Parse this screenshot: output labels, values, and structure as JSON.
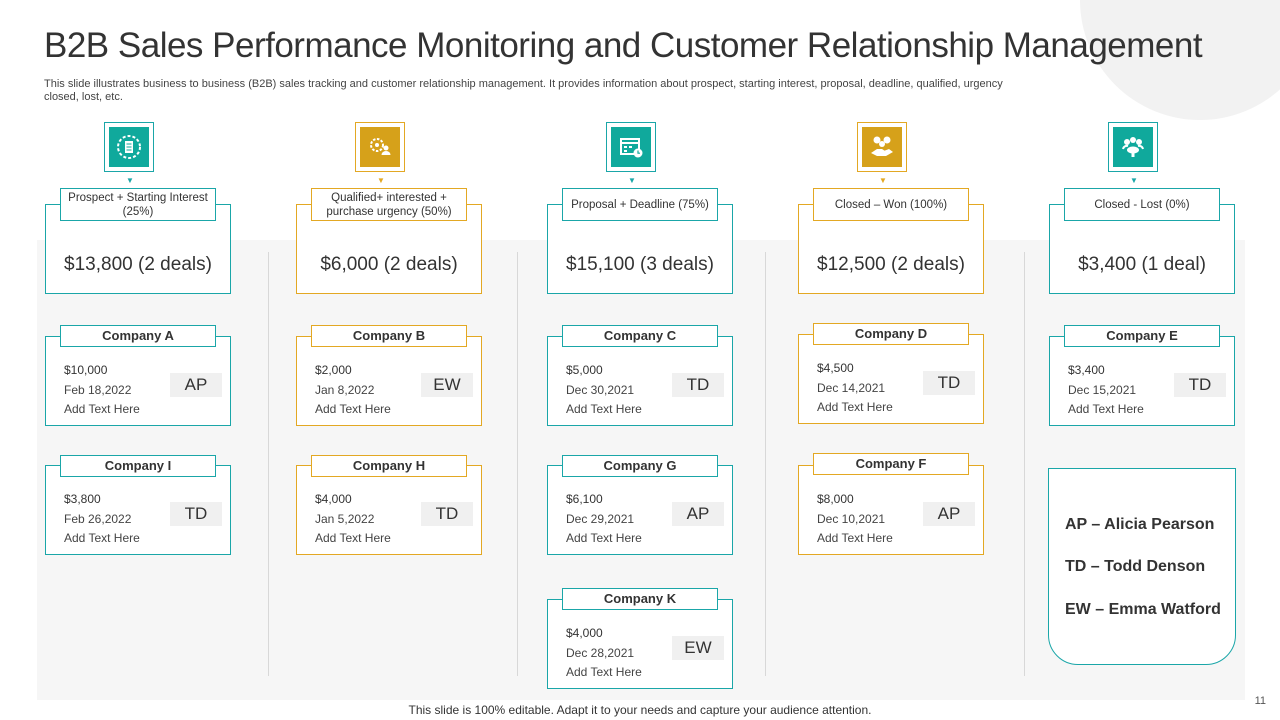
{
  "title": "B2B Sales Performance Monitoring and Customer Relationship Management",
  "subtitle": "This slide illustrates business to business (B2B) sales tracking and customer relationship management. It provides information about prospect, starting interest, proposal, deadline, qualified, urgency closed, lost, etc.",
  "colors": {
    "teal": "#1aa6a8",
    "gold": "#e3a823"
  },
  "stages": [
    {
      "icon": "settings-document-icon",
      "label": "Prospect + Starting Interest (25%)",
      "value": "$13,800 (2 deals)"
    },
    {
      "icon": "person-gear-icon",
      "label": "Qualified+ interested + purchase urgency (50%)",
      "value": "$6,000 (2 deals)"
    },
    {
      "icon": "calendar-clock-icon",
      "label": "Proposal + Deadline (75%)",
      "value": "$15,100 (3 deals)"
    },
    {
      "icon": "handshake-money-icon",
      "label": "Closed – Won (100%)",
      "value": "$12,500 (2 deals)"
    },
    {
      "icon": "meeting-icon",
      "label": "Closed - Lost (0%)",
      "value": "$3,400 (1 deal)"
    }
  ],
  "cards": {
    "company_a": {
      "name": "Company A",
      "amount": "$10,000",
      "date": "Feb 18,2022",
      "note": "Add Text Here",
      "initials": "AP"
    },
    "company_i": {
      "name": "Company I",
      "amount": "$3,800",
      "date": "Feb 26,2022",
      "note": "Add Text Here",
      "initials": "TD"
    },
    "company_b": {
      "name": "Company B",
      "amount": "$2,000",
      "date": "Jan 8,2022",
      "note": "Add Text Here",
      "initials": "EW"
    },
    "company_h": {
      "name": "Company H",
      "amount": "$4,000",
      "date": "Jan 5,2022",
      "note": "Add Text Here",
      "initials": "TD"
    },
    "company_c": {
      "name": "Company C",
      "amount": "$5,000",
      "date": "Dec 30,2021",
      "note": "Add Text Here",
      "initials": "TD"
    },
    "company_g": {
      "name": "Company G",
      "amount": "$6,100",
      "date": "Dec 29,2021",
      "note": "Add Text Here",
      "initials": "AP"
    },
    "company_k": {
      "name": "Company K",
      "amount": "$4,000",
      "date": "Dec 28,2021",
      "note": "Add Text Here",
      "initials": "EW"
    },
    "company_d": {
      "name": "Company D",
      "amount": "$4,500",
      "date": "Dec 14,2021",
      "note": "Add Text Here",
      "initials": "TD"
    },
    "company_f": {
      "name": "Company F",
      "amount": "$8,000",
      "date": "Dec 10,2021",
      "note": "Add Text Here",
      "initials": "AP"
    },
    "company_e": {
      "name": "Company E",
      "amount": "$3,400",
      "date": "Dec 15,2021",
      "note": "Add Text Here",
      "initials": "TD"
    }
  },
  "legend": [
    "AP – Alicia Pearson",
    "TD – Todd Denson",
    "EW – Emma Watford"
  ],
  "footer": "This slide is 100% editable. Adapt it to your  needs and capture your audience attention.",
  "page_number": "11"
}
